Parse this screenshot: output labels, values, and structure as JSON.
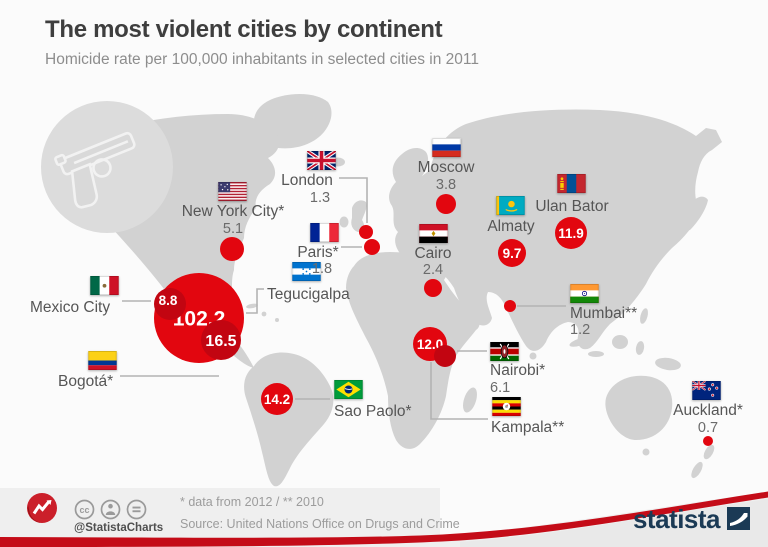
{
  "header": {
    "title": "The most violent cities by continent",
    "subtitle": "Homicide rate per 100,000 inhabitants in selected cities in 2011"
  },
  "chart_data": {
    "type": "bubble-map",
    "title": "The most violent cities by continent",
    "unit": "Homicide rate per 100,000 inhabitants in selected cities in 2011",
    "legend_note": "* data from 2012 / ** 2010",
    "cities": [
      {
        "id": "tegucigalpa",
        "city": "Tegucigalpa",
        "country": "Honduras",
        "flag": "hn",
        "value": 102.2,
        "display": "102.2",
        "value_in_bubble": true
      },
      {
        "id": "bogota",
        "city": "Bogotá*",
        "country": "Colombia",
        "flag": "co",
        "value": 16.5,
        "display": "16.5",
        "value_in_bubble": true
      },
      {
        "id": "saopaolo",
        "city": "Sao Paolo*",
        "country": "Brazil",
        "flag": "br",
        "value": 14.2,
        "display": "14.2",
        "value_in_bubble": true
      },
      {
        "id": "kampala",
        "city": "Kampala**",
        "country": "Uganda",
        "flag": "ug",
        "value": 12.0,
        "display": "12.0",
        "value_in_bubble": true
      },
      {
        "id": "ulanbator",
        "city": "Ulan Bator",
        "country": "Mongolia",
        "flag": "mn",
        "value": 11.9,
        "display": "11.9",
        "value_in_bubble": true
      },
      {
        "id": "almaty",
        "city": "Almaty",
        "country": "Kazakhstan",
        "flag": "kz",
        "value": 9.7,
        "display": "9.7",
        "value_in_bubble": true
      },
      {
        "id": "mexicocity",
        "city": "Mexico City",
        "country": "Mexico",
        "flag": "mx",
        "value": 8.8,
        "display": "8.8",
        "value_in_bubble": true
      },
      {
        "id": "nairobi",
        "city": "Nairobi*",
        "country": "Kenya",
        "flag": "ke",
        "value": 6.1,
        "display": "6.1",
        "value_in_bubble": false
      },
      {
        "id": "newyork",
        "city": "New York City*",
        "country": "United States",
        "flag": "us",
        "value": 5.1,
        "display": "5.1",
        "value_in_bubble": false
      },
      {
        "id": "moscow",
        "city": "Moscow",
        "country": "Russia",
        "flag": "ru",
        "value": 3.8,
        "display": "3.8",
        "value_in_bubble": false
      },
      {
        "id": "cairo",
        "city": "Cairo",
        "country": "Egypt",
        "flag": "eg",
        "value": 2.4,
        "display": "2.4",
        "value_in_bubble": false
      },
      {
        "id": "paris",
        "city": "Paris*",
        "country": "France",
        "flag": "fr",
        "value": 1.8,
        "display": "1.8",
        "value_in_bubble": false
      },
      {
        "id": "london",
        "city": "London",
        "country": "United Kingdom",
        "flag": "gb",
        "value": 1.3,
        "display": "1.3",
        "value_in_bubble": false
      },
      {
        "id": "mumbai",
        "city": "Mumbai**",
        "country": "India",
        "flag": "in",
        "value": 1.2,
        "display": "1.2",
        "value_in_bubble": false
      },
      {
        "id": "auckland",
        "city": "Auckland*",
        "country": "New Zealand",
        "flag": "nz",
        "value": 0.7,
        "display": "0.7",
        "value_in_bubble": false
      }
    ]
  },
  "footer": {
    "handle": "@StatistaCharts",
    "note": "* data from 2012 / ** 2010",
    "source": "Source: United Nations Office on Drugs and Crime",
    "brand": "statista",
    "license_icons": [
      "cc-icon",
      "attribution-person-icon",
      "no-derivatives-equals-icon"
    ]
  },
  "colors": {
    "bubble": "#e2060f",
    "bubble_dark": "#c20511",
    "map": "#d2d2d2",
    "accent_red": "#c40c18",
    "brand_navy": "#1b3a55",
    "connector": "#b3b3b3"
  }
}
